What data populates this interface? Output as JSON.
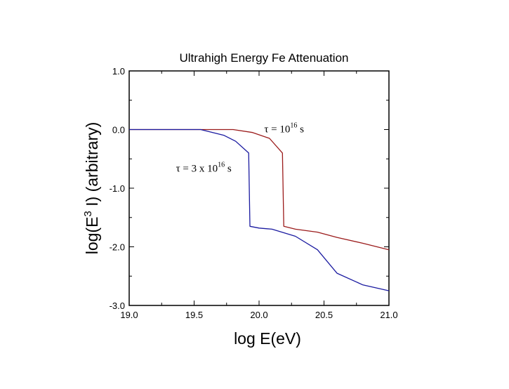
{
  "chart_data": {
    "type": "line",
    "title": "Ultrahigh Energy Fe Attenuation",
    "xlabel": "log E(eV)",
    "ylabel": {
      "prefix": "log(E",
      "superscript": "3",
      "suffix": " I) (arbitrary)"
    },
    "xlim": [
      19.0,
      21.0
    ],
    "ylim": [
      -3.0,
      1.0
    ],
    "x_ticks": [
      19.0,
      19.5,
      20.0,
      20.5,
      21.0
    ],
    "x_tick_labels": [
      "19.0",
      "19.5",
      "20.0",
      "20.5",
      "21.0"
    ],
    "y_ticks": [
      1.0,
      0.0,
      -1.0,
      -2.0,
      -3.0
    ],
    "y_tick_labels": [
      "1.0",
      "0.0",
      "-1.0",
      "-2.0",
      "-3.0"
    ],
    "grid": false,
    "series": [
      {
        "name": "tau = 10^16 s",
        "color": "#9b1b1b",
        "x": [
          19.0,
          19.55,
          19.8,
          19.95,
          20.08,
          20.18,
          20.19,
          20.28,
          20.45,
          20.6,
          20.8,
          21.0
        ],
        "y": [
          0.0,
          0.0,
          0.0,
          -0.05,
          -0.15,
          -0.4,
          -1.65,
          -1.7,
          -1.75,
          -1.84,
          -1.94,
          -2.05
        ]
      },
      {
        "name": "tau = 3 x 10^16 s",
        "color": "#1a1aa0",
        "x": [
          19.0,
          19.55,
          19.73,
          19.82,
          19.92,
          19.93,
          20.0,
          20.1,
          20.28,
          20.45,
          20.6,
          20.8,
          21.0
        ],
        "y": [
          0.0,
          0.0,
          -0.1,
          -0.2,
          -0.4,
          -1.65,
          -1.68,
          -1.7,
          -1.82,
          -2.05,
          -2.45,
          -2.65,
          -2.75
        ]
      }
    ],
    "annotations": [
      {
        "id": "tau1",
        "prefix": "τ = 10",
        "superscript": "16",
        "suffix": " s",
        "at": {
          "x": 20.04,
          "y": -0.05
        }
      },
      {
        "id": "tau2",
        "prefix": "τ = 3 x 10",
        "superscript": "16",
        "suffix": " s",
        "at": {
          "x": 19.36,
          "y": -0.72
        }
      }
    ]
  }
}
